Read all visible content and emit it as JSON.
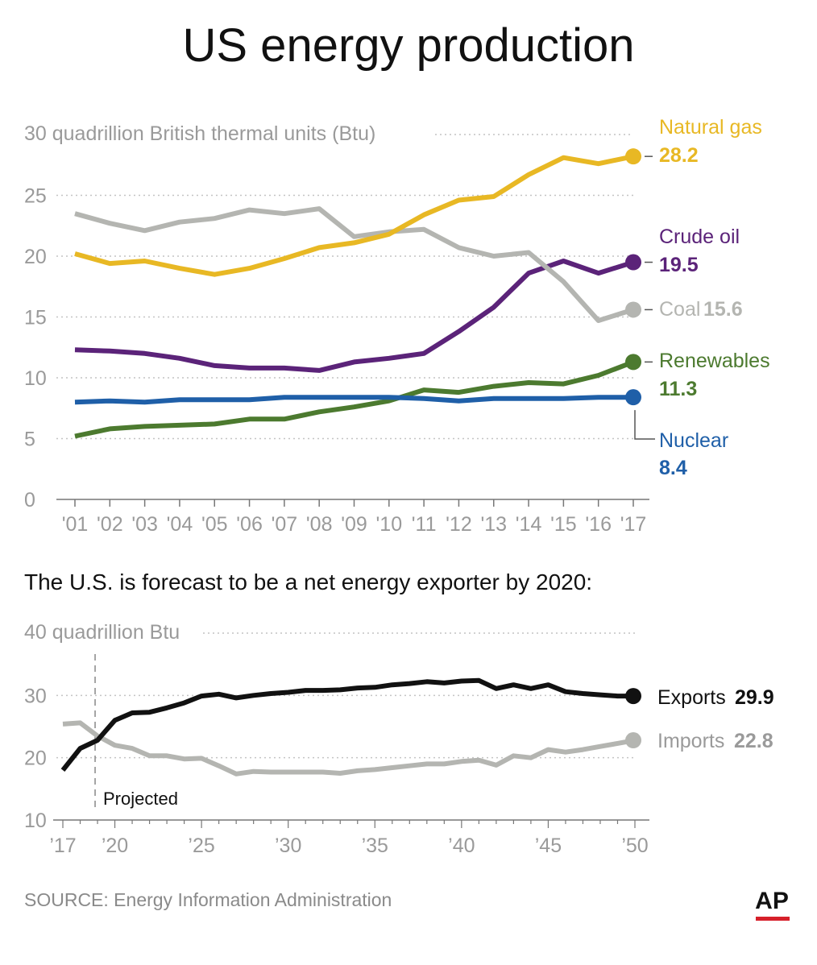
{
  "title": "US energy production",
  "subtitle": "The U.S. is forecast to be a net energy exporter by 2020:",
  "source": "SOURCE: Energy Information Administration",
  "logo": "AP",
  "colors": {
    "natural_gas": "#e8b824",
    "crude_oil": "#5b2379",
    "coal": "#b4b5b1",
    "renewables": "#4c7a2f",
    "nuclear": "#1f5fa8",
    "exports": "#111111",
    "imports": "#b4b5b1",
    "logo_underline": "#d6202a"
  },
  "chart_data": [
    {
      "type": "line",
      "title": "US energy production",
      "ylabel": "30 quadrillion British thermal units (Btu)",
      "ylim": [
        0,
        30
      ],
      "yticks": [
        "30",
        "25",
        "20",
        "15",
        "10",
        "5",
        "0"
      ],
      "x": [
        "'01",
        "'02",
        "'03",
        "'04",
        "'05",
        "'06",
        "'07",
        "'08",
        "'09",
        "'10",
        "'11",
        "'12",
        "'13",
        "'14",
        "'15",
        "'16",
        "'17"
      ],
      "grid": true,
      "series": [
        {
          "name": "Natural gas",
          "key": "natural_gas",
          "end_label": "28.2",
          "values": [
            20.2,
            19.4,
            19.6,
            19.0,
            18.5,
            19.0,
            19.8,
            20.7,
            21.1,
            21.8,
            23.4,
            24.6,
            24.9,
            26.7,
            28.1,
            27.6,
            28.2
          ]
        },
        {
          "name": "Crude oil",
          "key": "crude_oil",
          "end_label": "19.5",
          "values": [
            12.3,
            12.2,
            12.0,
            11.6,
            11.0,
            10.8,
            10.8,
            10.6,
            11.3,
            11.6,
            12.0,
            13.8,
            15.8,
            18.6,
            19.6,
            18.6,
            19.5
          ]
        },
        {
          "name": "Coal",
          "key": "coal",
          "end_label": "15.6",
          "values": [
            23.5,
            22.7,
            22.1,
            22.8,
            23.1,
            23.8,
            23.5,
            23.9,
            21.6,
            22.0,
            22.2,
            20.7,
            20.0,
            20.3,
            17.9,
            14.7,
            15.6
          ]
        },
        {
          "name": "Renewables",
          "key": "renewables",
          "end_label": "11.3",
          "values": [
            5.2,
            5.8,
            6.0,
            6.1,
            6.2,
            6.6,
            6.6,
            7.2,
            7.6,
            8.1,
            9.0,
            8.8,
            9.3,
            9.6,
            9.5,
            10.2,
            11.3
          ]
        },
        {
          "name": "Nuclear",
          "key": "nuclear",
          "end_label": "8.4",
          "values": [
            8.0,
            8.1,
            8.0,
            8.2,
            8.2,
            8.2,
            8.4,
            8.4,
            8.4,
            8.4,
            8.3,
            8.1,
            8.3,
            8.3,
            8.3,
            8.4,
            8.4
          ]
        }
      ]
    },
    {
      "type": "line",
      "title": "The U.S. is forecast to be a net energy exporter by 2020:",
      "ylabel": "40 quadrillion Btu",
      "ylim": [
        10,
        40
      ],
      "yticks": [
        "40",
        "30",
        "20",
        "10"
      ],
      "xticks": [
        "’17",
        "’20",
        "’25",
        "’30",
        "’35",
        "’40",
        "’45",
        "’50"
      ],
      "xtick_years": [
        2017,
        2020,
        2025,
        2030,
        2035,
        2040,
        2045,
        2050
      ],
      "xlim": [
        2017,
        2050
      ],
      "projection_start": 2019,
      "annotation": "Projected",
      "grid": true,
      "x": [
        2017,
        2018,
        2019,
        2020,
        2021,
        2022,
        2023,
        2024,
        2025,
        2026,
        2027,
        2028,
        2029,
        2030,
        2031,
        2032,
        2033,
        2034,
        2035,
        2036,
        2037,
        2038,
        2039,
        2040,
        2041,
        2042,
        2043,
        2044,
        2045,
        2046,
        2047,
        2048,
        2049,
        2050
      ],
      "series": [
        {
          "name": "Exports",
          "key": "exports",
          "end_label": "29.9",
          "values": [
            18.0,
            21.5,
            22.8,
            26.0,
            27.2,
            27.3,
            28.0,
            28.8,
            29.9,
            30.2,
            29.6,
            30.0,
            30.3,
            30.5,
            30.8,
            30.8,
            30.9,
            31.2,
            31.3,
            31.7,
            31.9,
            32.2,
            32.0,
            32.3,
            32.4,
            31.1,
            31.7,
            31.1,
            31.7,
            30.6,
            30.3,
            30.1,
            29.9,
            29.9
          ]
        },
        {
          "name": "Imports",
          "key": "imports",
          "end_label": "22.8",
          "values": [
            25.4,
            25.6,
            23.5,
            22.0,
            21.5,
            20.3,
            20.3,
            19.8,
            19.9,
            18.7,
            17.4,
            17.8,
            17.7,
            17.7,
            17.7,
            17.7,
            17.5,
            17.9,
            18.1,
            18.4,
            18.7,
            19.0,
            19.0,
            19.4,
            19.6,
            18.8,
            20.3,
            20.0,
            21.3,
            20.9,
            21.3,
            21.8,
            22.3,
            22.8
          ]
        }
      ]
    }
  ]
}
